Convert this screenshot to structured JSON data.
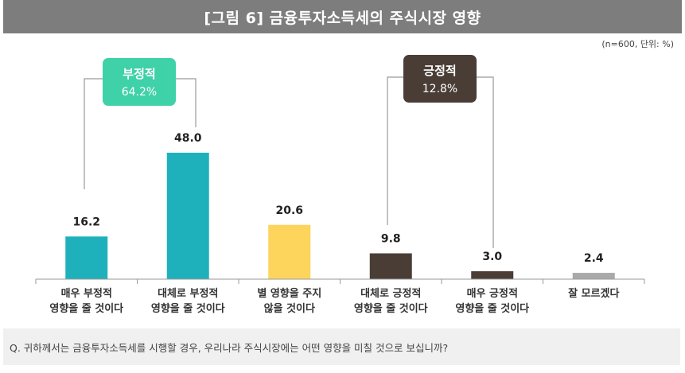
{
  "header": {
    "title": "[그림 6] 금융투자소득세의 주식시장 영향"
  },
  "unit_note": "(n=600, 단위: %)",
  "question": "Q. 귀하께서는 금융투자소득세를 시행할 경우, 우리나라 주식시장에는 어떤 영향을 미칠 것으로 보십니까?",
  "groups": {
    "negative": {
      "label": "부정적",
      "value": "64.2%",
      "color": "#3fd1a8"
    },
    "positive": {
      "label": "긍정적",
      "value": "12.8%",
      "color": "#4a3d36"
    }
  },
  "chart_data": {
    "type": "bar",
    "title": "[그림 6] 금융투자소득세의 주식시장 영향",
    "ylabel": "",
    "ylim": [
      0,
      50
    ],
    "grid": false,
    "categories": [
      [
        "매우 부정적",
        "영향을 줄 것이다"
      ],
      [
        "대체로 부정적",
        "영향을 줄 것이다"
      ],
      [
        "별 영향을 주지",
        "않을 것이다"
      ],
      [
        "대체로 긍정적",
        "영향을 줄 것이다"
      ],
      [
        "매우 긍정적",
        "영향을 줄 것이다"
      ],
      [
        "잘 모르겠다"
      ]
    ],
    "values": [
      16.2,
      48.0,
      20.6,
      9.8,
      3.0,
      2.4
    ],
    "value_labels": [
      "16.2",
      "48.0",
      "20.6",
      "9.8",
      "3.0",
      "2.4"
    ],
    "colors": [
      "#1fb1bb",
      "#1fb1bb",
      "#fdd45c",
      "#4a3d36",
      "#4a3d36",
      "#a9a9a9"
    ]
  }
}
